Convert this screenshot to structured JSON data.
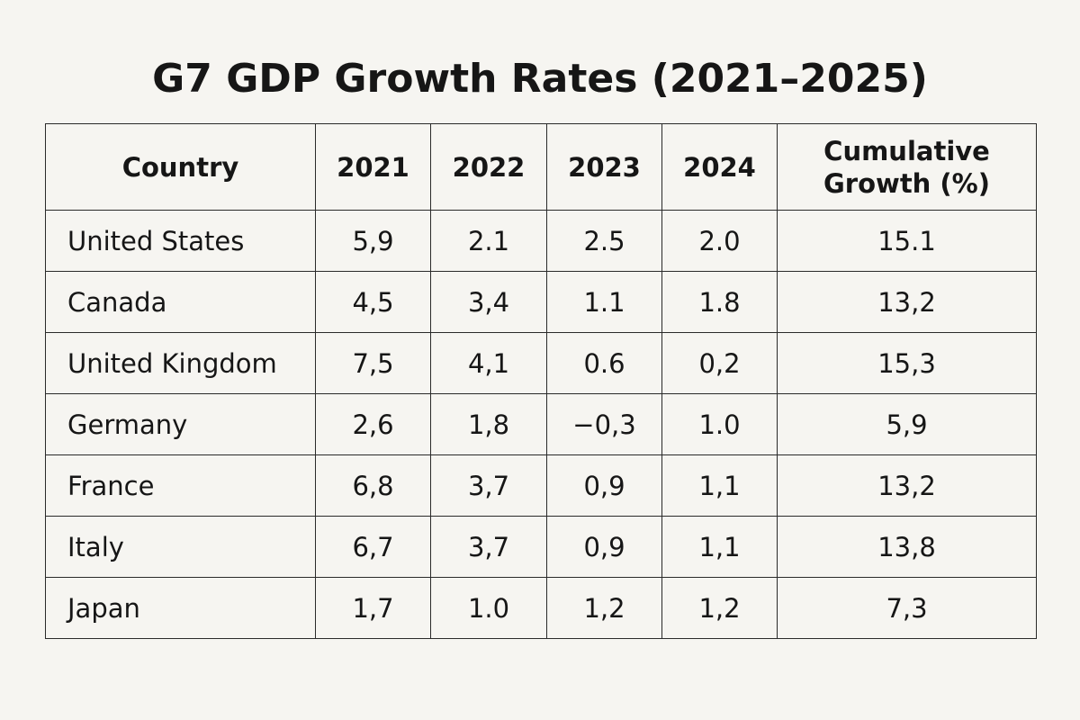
{
  "title": "G7 GDP Growth Rates (2021–2025)",
  "table": {
    "headers": [
      "Country",
      "2021",
      "2022",
      "2023",
      "2024",
      "Cumulative Growth (%)"
    ],
    "rows": [
      [
        "United States",
        "5,9",
        "2.1",
        "2.5",
        "2.0",
        "15.1"
      ],
      [
        "Canada",
        "4,5",
        "3,4",
        "1.1",
        "1.8",
        "13,2"
      ],
      [
        "United Kingdom",
        "7,5",
        "4,1",
        "0.6",
        "0,2",
        "15,3"
      ],
      [
        "Germany",
        "2,6",
        "1,8",
        "−0,3",
        "1.0",
        "5,9"
      ],
      [
        "France",
        "6,8",
        "3,7",
        "0,9",
        "1,1",
        "13,2"
      ],
      [
        "Italy",
        "6,7",
        "3,7",
        "0,9",
        "1,1",
        "13,8"
      ],
      [
        "Japan",
        "1,7",
        "1.0",
        "1,2",
        "1,2",
        "7,3"
      ]
    ]
  }
}
